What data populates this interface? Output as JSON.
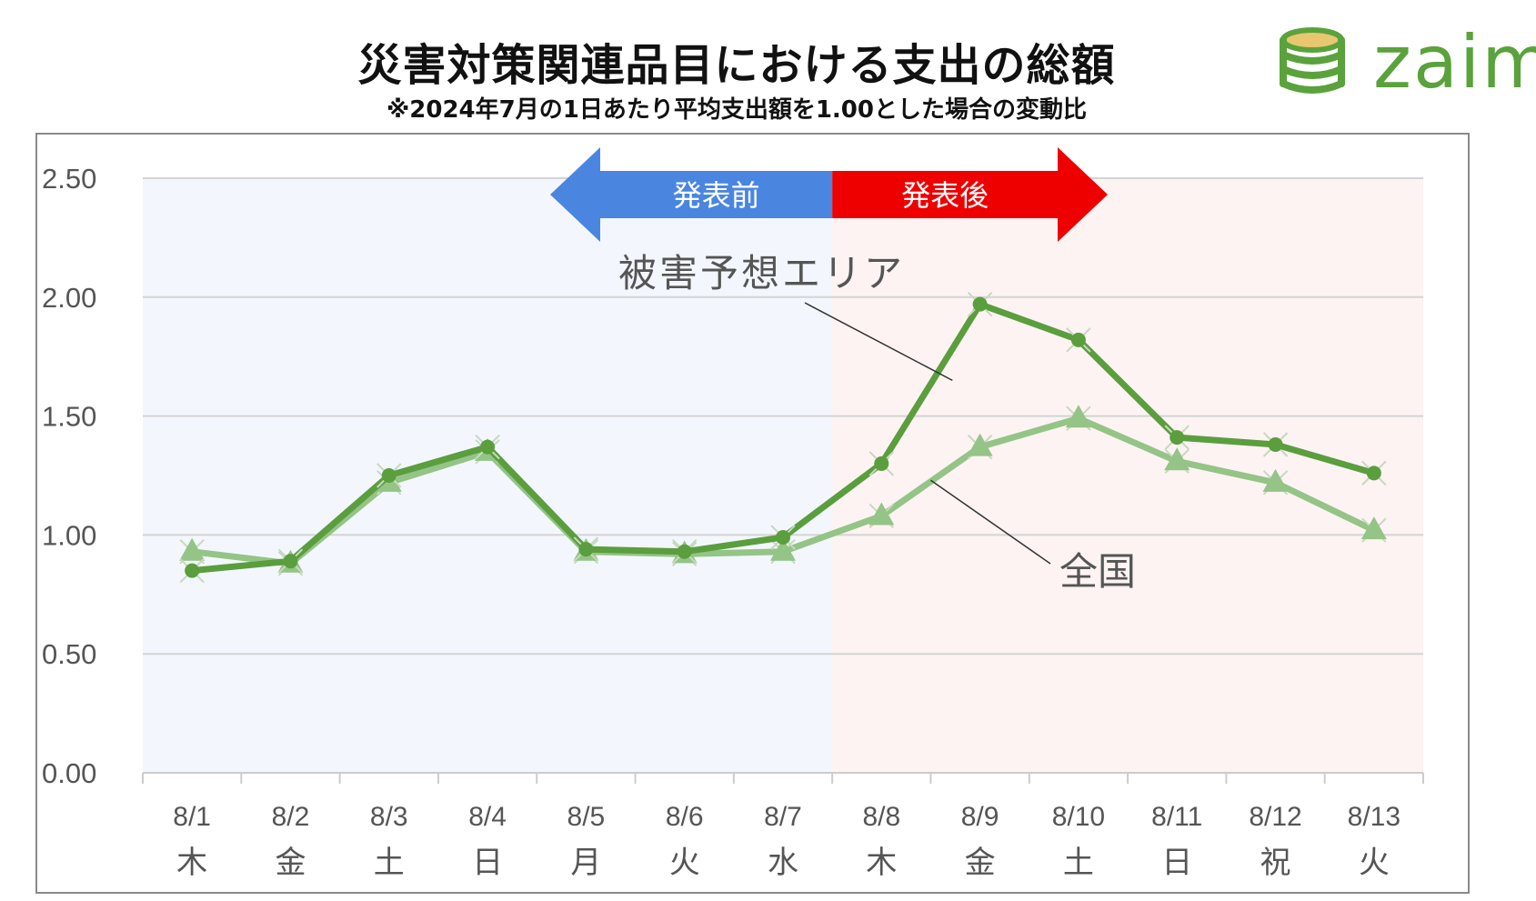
{
  "title": "災害対策関連品目における支出の総額",
  "subtitle": "※2024年7月の1日あたり平均支出額を1.00とした場合の変動比",
  "logo_text": "zaim",
  "chart_data": {
    "type": "line",
    "categories": [
      "8/1",
      "8/2",
      "8/3",
      "8/4",
      "8/5",
      "8/6",
      "8/7",
      "8/8",
      "8/9",
      "8/10",
      "8/11",
      "8/12",
      "8/13"
    ],
    "weekdays": [
      "木",
      "金",
      "土",
      "日",
      "月",
      "火",
      "水",
      "木",
      "金",
      "土",
      "日",
      "祝",
      "火"
    ],
    "series": [
      {
        "name": "被害予想エリア",
        "color": "#5a9e3e",
        "marker": "circle",
        "values": [
          0.85,
          0.89,
          1.25,
          1.37,
          0.94,
          0.93,
          0.99,
          1.3,
          1.97,
          1.82,
          1.41,
          1.38,
          1.26
        ]
      },
      {
        "name": "全国",
        "color": "#94c486",
        "marker": "triangle",
        "values": [
          0.93,
          0.88,
          1.22,
          1.35,
          0.93,
          0.92,
          0.93,
          1.08,
          1.37,
          1.49,
          1.31,
          1.22,
          1.02
        ]
      }
    ],
    "ylim": [
      0,
      2.5
    ],
    "yticks": [
      "0.00",
      "0.50",
      "1.00",
      "1.50",
      "2.00",
      "2.50"
    ],
    "grid": true,
    "period_labels": {
      "before": "発表前",
      "after": "発表後"
    },
    "period_colors": {
      "before_bg": "#f3f7fd",
      "after_bg": "#fdf3f3",
      "before_arrow": "#4a86e0",
      "after_arrow": "#ee0000"
    }
  }
}
